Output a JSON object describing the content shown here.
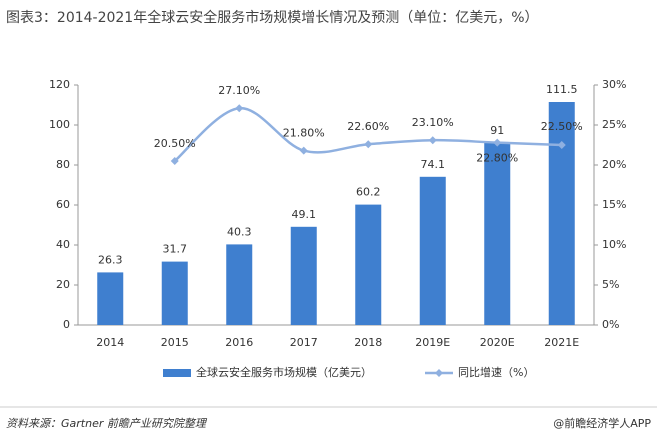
{
  "chart_data": {
    "type": "bar",
    "title": "图表3：2014-2021年全球云安全服务市场规模增长情况及预测（单位：亿美元，%）",
    "source": "资料来源：Gartner 前瞻产业研究院整理",
    "brand": "@前瞻经济学人APP",
    "categories": [
      "2014",
      "2015",
      "2016",
      "2017",
      "2018",
      "2019E",
      "2020E",
      "2021E"
    ],
    "series": [
      {
        "name": "全球云安全服务市场规模（亿美元）",
        "type": "bar",
        "color": "#3f7fcf",
        "values": [
          26.3,
          31.7,
          40.3,
          49.1,
          60.2,
          74.1,
          91,
          111.5
        ]
      },
      {
        "name": "同比增速（%）",
        "type": "line",
        "axis": "y2",
        "color": "#8fb0e0",
        "values": [
          null,
          20.5,
          27.1,
          21.8,
          22.6,
          23.1,
          22.8,
          22.5
        ],
        "value_labels": [
          null,
          "20.50%",
          "27.10%",
          "21.80%",
          "22.60%",
          "23.10%",
          "22.80%",
          "22.50%"
        ]
      }
    ],
    "ylim": [
      0,
      120
    ],
    "yticks": [
      0,
      20,
      40,
      60,
      80,
      100,
      120
    ],
    "y2lim": [
      0,
      30
    ],
    "y2ticks": [
      {
        "value": 0,
        "label": "0%"
      },
      {
        "value": 5,
        "label": "5%"
      },
      {
        "value": 10,
        "label": "10%"
      },
      {
        "value": 15,
        "label": "15%"
      },
      {
        "value": 20,
        "label": "20%"
      },
      {
        "value": 25,
        "label": "25%"
      },
      {
        "value": 30,
        "label": "30%"
      }
    ],
    "legend": "bottom"
  }
}
